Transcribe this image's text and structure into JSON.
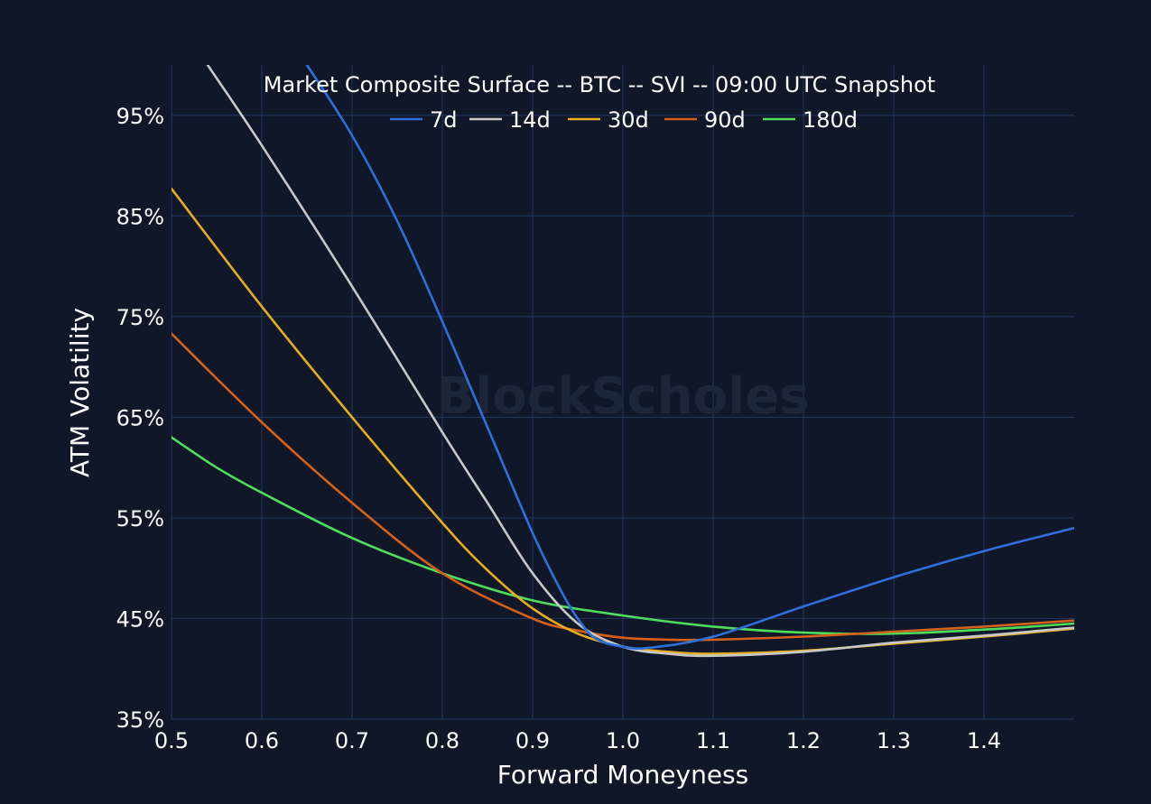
{
  "watermark": "BlockScholes",
  "chart_data": {
    "type": "line",
    "title": "Market Composite Surface -- BTC -- SVI -- 09:00 UTC Snapshot",
    "xlabel": "Forward Moneyness",
    "ylabel": "ATM Volatility",
    "xlim": [
      0.5,
      1.5
    ],
    "ylim": [
      35,
      100
    ],
    "xticks": [
      0.5,
      0.6,
      0.7,
      0.8,
      0.9,
      1.0,
      1.1,
      1.2,
      1.3,
      1.4
    ],
    "xtick_labels": [
      "0.5",
      "0.6",
      "0.7",
      "0.8",
      "0.9",
      "1.0",
      "1.1",
      "1.2",
      "1.3",
      "1.4"
    ],
    "yticks": [
      35,
      45,
      55,
      65,
      75,
      85,
      95
    ],
    "ytick_labels": [
      "35%",
      "45%",
      "55%",
      "65%",
      "75%",
      "85%",
      "95%"
    ],
    "grid": true,
    "legend_position": "top-center",
    "series": [
      {
        "name": "7d",
        "color": "#2f6fdc",
        "x": [
          0.65,
          0.7,
          0.75,
          0.8,
          0.85,
          0.9,
          0.93,
          0.95,
          0.97,
          1.0,
          1.03,
          1.1,
          1.2,
          1.3,
          1.4,
          1.5
        ],
        "y": [
          100,
          93,
          84.5,
          74.5,
          64,
          53.5,
          48,
          45,
          43,
          42.2,
          42.1,
          43.2,
          46.2,
          49.1,
          51.7,
          54
        ]
      },
      {
        "name": "14d",
        "color": "#c8c8c8",
        "x": [
          0.54,
          0.6,
          0.7,
          0.8,
          0.85,
          0.9,
          0.95,
          1.0,
          1.05,
          1.1,
          1.2,
          1.3,
          1.4,
          1.5
        ],
        "y": [
          100,
          92,
          78,
          63.5,
          56.5,
          49.5,
          44.5,
          42.2,
          41.5,
          41.3,
          41.7,
          42.6,
          43.3,
          44.1
        ]
      },
      {
        "name": "30d",
        "color": "#e8ad1f",
        "x": [
          0.5,
          0.6,
          0.7,
          0.8,
          0.85,
          0.9,
          0.95,
          1.0,
          1.05,
          1.1,
          1.2,
          1.3,
          1.4,
          1.5
        ],
        "y": [
          87.7,
          76,
          65,
          54.5,
          49.8,
          46,
          43.5,
          42.2,
          41.7,
          41.5,
          41.8,
          42.5,
          43.2,
          44
        ]
      },
      {
        "name": "90d",
        "color": "#d5601a",
        "x": [
          0.5,
          0.6,
          0.7,
          0.8,
          0.9,
          0.95,
          1.0,
          1.05,
          1.1,
          1.2,
          1.3,
          1.4,
          1.5
        ],
        "y": [
          73.3,
          64.5,
          56.5,
          49.5,
          45,
          43.8,
          43.1,
          42.9,
          42.9,
          43.2,
          43.7,
          44.2,
          44.8
        ]
      },
      {
        "name": "180d",
        "color": "#4fdd5e",
        "x": [
          0.5,
          0.55,
          0.6,
          0.7,
          0.8,
          0.9,
          1.0,
          1.1,
          1.2,
          1.3,
          1.4,
          1.5
        ],
        "y": [
          63,
          60,
          57.5,
          53,
          49.5,
          46.8,
          45.3,
          44.2,
          43.6,
          43.5,
          43.9,
          44.5
        ]
      }
    ]
  }
}
